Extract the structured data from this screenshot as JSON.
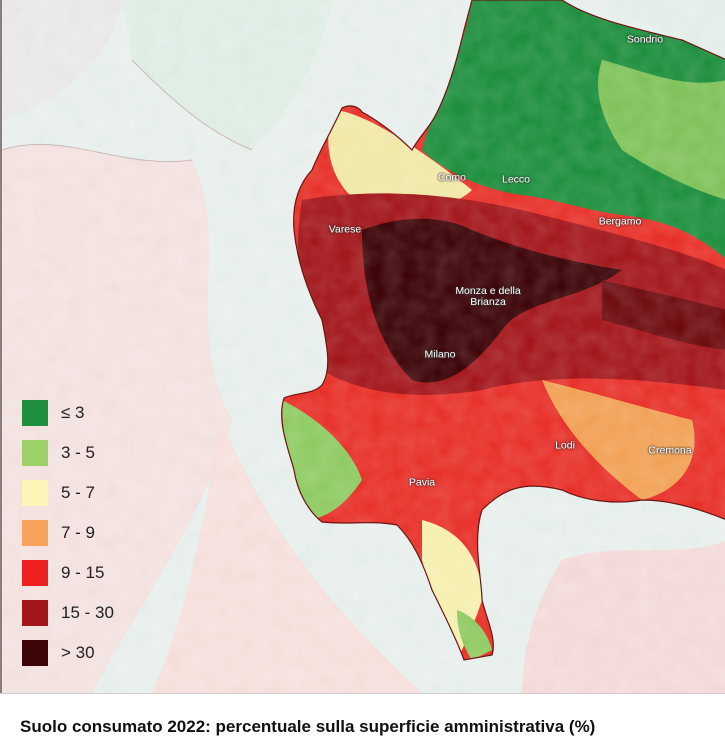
{
  "map": {
    "cities": [
      {
        "name": "Sondrio",
        "display": "Sondrio"
      },
      {
        "name": "Como",
        "display": "Como"
      },
      {
        "name": "Lecco",
        "display": "Lecco"
      },
      {
        "name": "Varese",
        "display": "Varese"
      },
      {
        "name": "Bergamo",
        "display": "Bergamo"
      },
      {
        "name": "Monza e della Brianza",
        "display": "Monza e della\nBrianza"
      },
      {
        "name": "Milano",
        "display": "Milano"
      },
      {
        "name": "Lodi",
        "display": "Lodi"
      },
      {
        "name": "Cremona",
        "display": "Cremona"
      },
      {
        "name": "Pavia",
        "display": "Pavia"
      }
    ]
  },
  "legend": {
    "items": [
      {
        "label": "≤ 3",
        "color": "#1e8f3e"
      },
      {
        "label": "3 - 5",
        "color": "#9bd166"
      },
      {
        "label": "5 - 7",
        "color": "#fbf5b8"
      },
      {
        "label": "7 - 9",
        "color": "#f7a35c"
      },
      {
        "label": "9 - 15",
        "color": "#ee2020"
      },
      {
        "label": "15 - 30",
        "color": "#a3171c"
      },
      {
        "label": "> 30",
        "color": "#3c0508"
      }
    ]
  },
  "caption": "Suolo consumato 2022: percentuale sulla superficie amministrativa (%)"
}
